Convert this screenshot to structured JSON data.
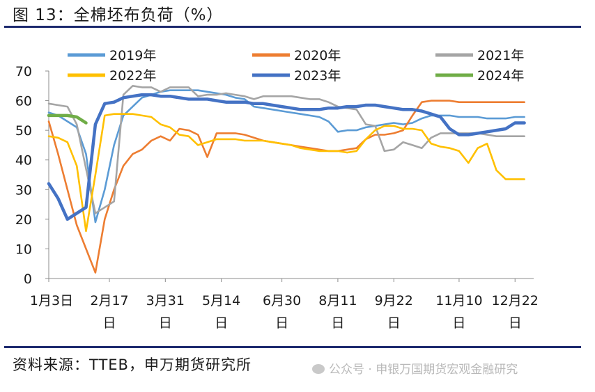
{
  "figure": {
    "title": "图 13：全棉坯布负荷（%）",
    "source": "资料来源：TTEB，申万期货研究所",
    "watermark": "公众号 · 申银万国期货宏观金融研究"
  },
  "chart_data": {
    "type": "line",
    "title": "全棉坯布负荷（%）",
    "xlabel": "",
    "ylabel": "",
    "ylim": [
      0,
      70
    ],
    "yticks": [
      0,
      10,
      20,
      30,
      40,
      50,
      60,
      70
    ],
    "xlim": [
      1,
      53
    ],
    "x_unit": "week of year",
    "xticks": [
      {
        "week": 1,
        "label": "1月3日"
      },
      {
        "week": 7.5,
        "label": "2月17日"
      },
      {
        "week": 13.5,
        "label": "3月31日"
      },
      {
        "week": 19.5,
        "label": "5月14日"
      },
      {
        "week": 26,
        "label": "6月30日"
      },
      {
        "week": 32,
        "label": "8月11日"
      },
      {
        "week": 38,
        "label": "9月22日"
      },
      {
        "week": 45,
        "label": "11月10日"
      },
      {
        "week": 51,
        "label": "12月22日"
      }
    ],
    "grid": false,
    "legend_position": "top",
    "series": [
      {
        "name": "2019年",
        "color": "#5b9bd5",
        "width": 2.6,
        "x": [
          1,
          2,
          3,
          4,
          5,
          6,
          7,
          8,
          9,
          10,
          11,
          12,
          13,
          14,
          15,
          16,
          17,
          18,
          19,
          20,
          21,
          22,
          23,
          24,
          25,
          26,
          27,
          28,
          29,
          30,
          31,
          32,
          33,
          34,
          35,
          36,
          37,
          38,
          39,
          40,
          41,
          42,
          43,
          44,
          45,
          46,
          47,
          48,
          49,
          50,
          51,
          52
        ],
        "y": [
          56,
          55,
          53,
          51,
          42,
          19,
          30,
          45,
          55,
          58,
          61,
          62,
          63,
          63.5,
          63.5,
          63.5,
          63.5,
          63,
          62.5,
          62,
          61,
          60.5,
          58,
          57.5,
          57,
          56.5,
          56,
          55.5,
          55,
          54.5,
          53,
          49.5,
          50,
          50,
          51,
          51.5,
          52,
          52.5,
          52,
          52.5,
          54,
          55,
          55,
          55,
          54.5,
          54.5,
          54.5,
          54,
          54,
          54,
          54.5,
          54.5
        ]
      },
      {
        "name": "2020年",
        "color": "#ed7d31",
        "width": 2.6,
        "x": [
          1,
          2,
          3,
          4,
          5,
          6,
          7,
          8,
          9,
          10,
          11,
          12,
          13,
          14,
          15,
          16,
          17,
          18,
          19,
          20,
          21,
          22,
          23,
          24,
          25,
          26,
          27,
          28,
          29,
          30,
          31,
          32,
          33,
          34,
          35,
          36,
          37,
          38,
          39,
          40,
          41,
          42,
          43,
          44,
          45,
          46,
          47,
          48,
          49,
          50,
          51,
          52
        ],
        "y": [
          53,
          42,
          30,
          18,
          10,
          2,
          20,
          30,
          38,
          42,
          43.5,
          46.5,
          48,
          46.5,
          50.5,
          50,
          48.5,
          41,
          49,
          49,
          49,
          48.5,
          47.5,
          46.5,
          46,
          45.5,
          45,
          44.5,
          44,
          43.5,
          43,
          43,
          43.5,
          44,
          47,
          48.5,
          48.5,
          49,
          50,
          55,
          59.5,
          60,
          60,
          60,
          59.5,
          59.5,
          59.5,
          59.5,
          59.5,
          59.5,
          59.5,
          59.5
        ]
      },
      {
        "name": "2021年",
        "color": "#a5a5a5",
        "width": 2.6,
        "x": [
          1,
          2,
          3,
          4,
          5,
          6,
          7,
          8,
          9,
          10,
          11,
          12,
          13,
          14,
          15,
          16,
          17,
          18,
          19,
          20,
          21,
          22,
          23,
          24,
          25,
          26,
          27,
          28,
          29,
          30,
          31,
          32,
          33,
          34,
          35,
          36,
          37,
          38,
          39,
          40,
          41,
          42,
          43,
          44,
          45,
          46,
          47,
          48,
          49,
          50,
          51,
          52
        ],
        "y": [
          59,
          58.5,
          58,
          52,
          37,
          22,
          24,
          26,
          62,
          65,
          64.5,
          64.5,
          63,
          64.5,
          64.5,
          64.5,
          61.5,
          62,
          62,
          62.5,
          62,
          61.5,
          60.5,
          61.5,
          61.5,
          61.5,
          61.5,
          61,
          60.5,
          60.5,
          59.5,
          58,
          57.5,
          57,
          52,
          51.5,
          43,
          43.5,
          46,
          45,
          44,
          47.5,
          49,
          49,
          49,
          49,
          49,
          48.5,
          48,
          48,
          48,
          48
        ]
      },
      {
        "name": "2022年",
        "color": "#ffc000",
        "width": 2.6,
        "x": [
          1,
          2,
          3,
          4,
          5,
          6,
          7,
          8,
          9,
          10,
          11,
          12,
          13,
          14,
          15,
          16,
          17,
          18,
          19,
          20,
          21,
          22,
          23,
          24,
          25,
          26,
          27,
          28,
          29,
          30,
          31,
          32,
          33,
          34,
          35,
          36,
          37,
          38,
          39,
          40,
          41,
          42,
          43,
          44,
          45,
          46,
          47,
          48,
          49,
          50,
          51,
          52
        ],
        "y": [
          48,
          47.5,
          46,
          38,
          16,
          35,
          55,
          55.5,
          55.5,
          55.5,
          55,
          54.5,
          52,
          51,
          48.5,
          48,
          45,
          46,
          47,
          47,
          47,
          46.5,
          46.5,
          46.5,
          46,
          45.5,
          45,
          44,
          43.5,
          43,
          43,
          43,
          42.5,
          43,
          47,
          50,
          51.5,
          51.5,
          50.5,
          50.5,
          50,
          45.5,
          44.5,
          44,
          43,
          39,
          44,
          45.5,
          36.5,
          33.5,
          33.5,
          33.5
        ]
      },
      {
        "name": "2023年",
        "color": "#4472c4",
        "width": 4.5,
        "x": [
          1,
          2,
          3,
          4,
          5,
          6,
          7,
          8,
          9,
          10,
          11,
          12,
          13,
          14,
          15,
          16,
          17,
          18,
          19,
          20,
          21,
          22,
          23,
          24,
          25,
          26,
          27,
          28,
          29,
          30,
          31,
          32,
          33,
          34,
          35,
          36,
          37,
          38,
          39,
          40,
          41,
          42,
          43,
          44,
          45,
          46,
          47,
          48,
          49,
          50,
          51,
          52
        ],
        "y": [
          32,
          27,
          20,
          22,
          24,
          52,
          59,
          59.5,
          61,
          61.5,
          62,
          62,
          61.5,
          61.5,
          61,
          60.5,
          60.5,
          60.5,
          60,
          59.5,
          59.5,
          59.5,
          59,
          59,
          58.5,
          58,
          57.5,
          57,
          57,
          57,
          57.5,
          57.5,
          58,
          58,
          58.5,
          58.5,
          58,
          57.5,
          57,
          57,
          56.5,
          55.5,
          54.5,
          50.5,
          48.5,
          48.5,
          49,
          49.5,
          50,
          50.5,
          52.5,
          52.5
        ]
      },
      {
        "name": "2024年",
        "color": "#70ad47",
        "width": 4.5,
        "x": [
          1,
          2,
          3,
          4,
          5
        ],
        "y": [
          55,
          55,
          55,
          54.5,
          52.5
        ]
      }
    ]
  }
}
